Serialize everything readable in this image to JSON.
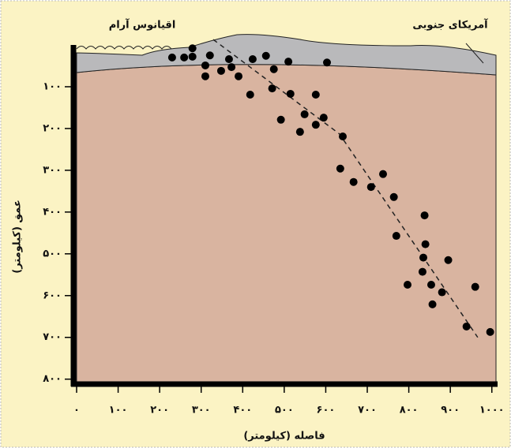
{
  "chart_data": {
    "type": "scatter",
    "annotations": [
      "اقیانوس آرام",
      "آمریکای جنوبی"
    ],
    "x_label": "فاصله (کیلومتر)",
    "y_label": "عمق (کیلومتر)",
    "color": "#000000",
    "y_inverted": true,
    "xlim": [
      0,
      1010
    ],
    "ylim": [
      0,
      810
    ],
    "xticks": [
      {
        "value": 0,
        "label": "۰"
      },
      {
        "value": 100,
        "label": "۱۰۰"
      },
      {
        "value": 200,
        "label": "۲۰۰"
      },
      {
        "value": 300,
        "label": "۳۰۰"
      },
      {
        "value": 400,
        "label": "۴۰۰"
      },
      {
        "value": 500,
        "label": "۵۰۰"
      },
      {
        "value": 600,
        "label": "۶۰۰"
      },
      {
        "value": 700,
        "label": "۷۰۰"
      },
      {
        "value": 800,
        "label": "۸۰۰"
      },
      {
        "value": 900,
        "label": "۹۰۰"
      },
      {
        "value": 1000,
        "label": "۱۰۰۰"
      }
    ],
    "yticks": [
      {
        "value": 100,
        "label": "۱۰۰"
      },
      {
        "value": 200,
        "label": "۲۰۰"
      },
      {
        "value": 300,
        "label": "۳۰۰"
      },
      {
        "value": 400,
        "label": "۴۰۰"
      },
      {
        "value": 500,
        "label": "۵۰۰"
      },
      {
        "value": 600,
        "label": "۶۰۰"
      },
      {
        "value": 700,
        "label": "۷۰۰"
      },
      {
        "value": 800,
        "label": "۸۰۰"
      }
    ],
    "x": [
      230,
      259,
      279,
      279,
      321,
      310,
      310,
      348,
      367,
      373,
      390,
      418,
      424,
      456,
      475,
      471,
      510,
      515,
      492,
      549,
      538,
      576,
      576,
      595,
      603,
      641,
      635,
      667,
      709,
      738,
      764,
      770,
      797,
      838,
      840,
      835,
      833,
      854,
      857,
      880,
      895,
      939,
      960,
      996
    ],
    "values": [
      30,
      30,
      28,
      8,
      25,
      49,
      75,
      62,
      34,
      53,
      75,
      119,
      34,
      26,
      58,
      104,
      40,
      117,
      179,
      166,
      208,
      119,
      191,
      174,
      42,
      219,
      296,
      328,
      340,
      309,
      364,
      457,
      574,
      408,
      477,
      509,
      543,
      574,
      621,
      592,
      515,
      674,
      579,
      687
    ],
    "trend_line": {
      "x": [
        329,
        633,
        966
      ],
      "values": [
        -13,
        213,
        700
      ]
    }
  }
}
